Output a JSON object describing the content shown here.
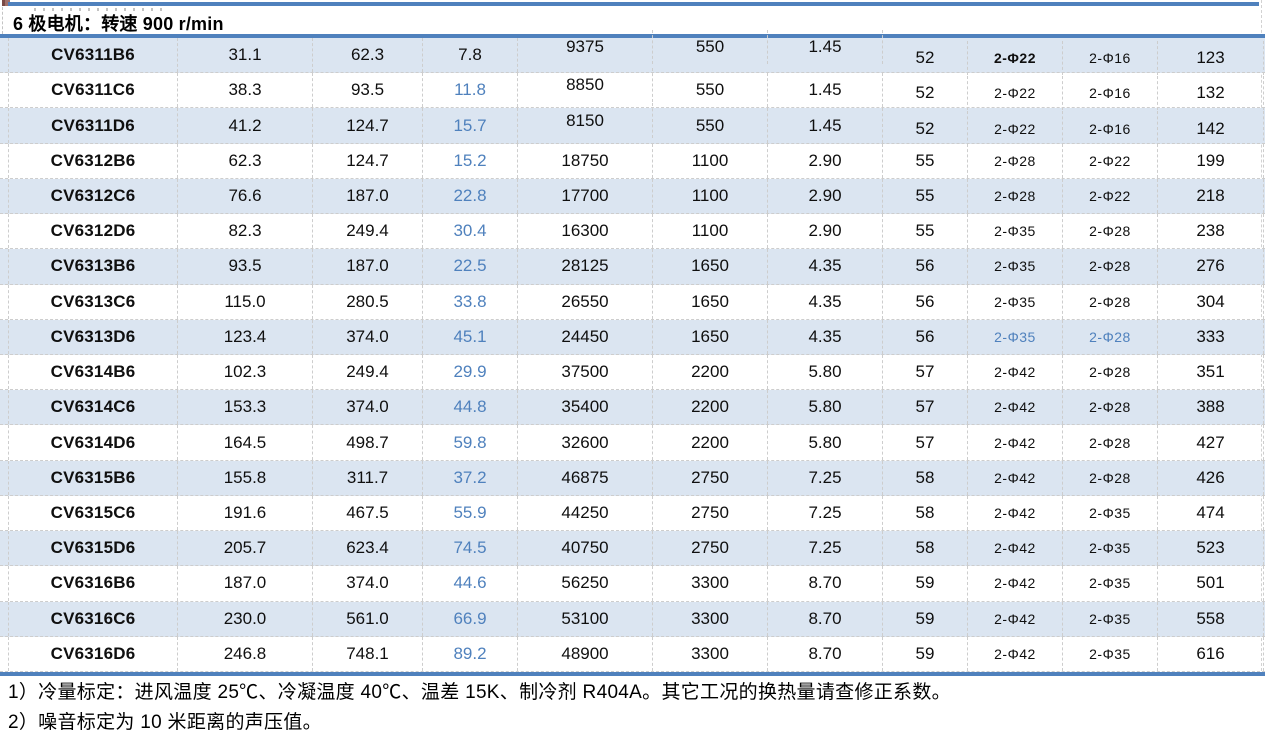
{
  "title": "6 极电机：转速 900 r/min",
  "table": {
    "rows": [
      {
        "model": "CV6311B6",
        "values": [
          "31.1",
          "62.3",
          "7.8",
          "9375",
          "550",
          "1.45",
          "52",
          "2-Φ22",
          "2-Φ16",
          "123"
        ],
        "col4_blue": false,
        "phi_bold": true,
        "phi_blue": false
      },
      {
        "model": "CV6311C6",
        "values": [
          "38.3",
          "93.5",
          "11.8",
          "8850",
          "550",
          "1.45",
          "52",
          "2-Φ22",
          "2-Φ16",
          "132"
        ],
        "col4_blue": true,
        "phi_bold": false,
        "phi_blue": false
      },
      {
        "model": "CV6311D6",
        "values": [
          "41.2",
          "124.7",
          "15.7",
          "8150",
          "550",
          "1.45",
          "52",
          "2-Φ22",
          "2-Φ16",
          "142"
        ],
        "col4_blue": true,
        "phi_bold": false,
        "phi_blue": false
      },
      {
        "model": "CV6312B6",
        "values": [
          "62.3",
          "124.7",
          "15.2",
          "18750",
          "1100",
          "2.90",
          "55",
          "2-Φ28",
          "2-Φ22",
          "199"
        ],
        "col4_blue": true,
        "phi_bold": false,
        "phi_blue": false
      },
      {
        "model": "CV6312C6",
        "values": [
          "76.6",
          "187.0",
          "22.8",
          "17700",
          "1100",
          "2.90",
          "55",
          "2-Φ28",
          "2-Φ22",
          "218"
        ],
        "col4_blue": true,
        "phi_bold": false,
        "phi_blue": false
      },
      {
        "model": "CV6312D6",
        "values": [
          "82.3",
          "249.4",
          "30.4",
          "16300",
          "1100",
          "2.90",
          "55",
          "2-Φ35",
          "2-Φ28",
          "238"
        ],
        "col4_blue": true,
        "phi_bold": false,
        "phi_blue": false
      },
      {
        "model": "CV6313B6",
        "values": [
          "93.5",
          "187.0",
          "22.5",
          "28125",
          "1650",
          "4.35",
          "56",
          "2-Φ35",
          "2-Φ28",
          "276"
        ],
        "col4_blue": true,
        "phi_bold": false,
        "phi_blue": false
      },
      {
        "model": "CV6313C6",
        "values": [
          "115.0",
          "280.5",
          "33.8",
          "26550",
          "1650",
          "4.35",
          "56",
          "2-Φ35",
          "2-Φ28",
          "304"
        ],
        "col4_blue": true,
        "phi_bold": false,
        "phi_blue": false
      },
      {
        "model": "CV6313D6",
        "values": [
          "123.4",
          "374.0",
          "45.1",
          "24450",
          "1650",
          "4.35",
          "56",
          "2-Φ35",
          "2-Φ28",
          "333"
        ],
        "col4_blue": true,
        "phi_bold": false,
        "phi_blue": true
      },
      {
        "model": "CV6314B6",
        "values": [
          "102.3",
          "249.4",
          "29.9",
          "37500",
          "2200",
          "5.80",
          "57",
          "2-Φ42",
          "2-Φ28",
          "351"
        ],
        "col4_blue": true,
        "phi_bold": false,
        "phi_blue": false
      },
      {
        "model": "CV6314C6",
        "values": [
          "153.3",
          "374.0",
          "44.8",
          "35400",
          "2200",
          "5.80",
          "57",
          "2-Φ42",
          "2-Φ28",
          "388"
        ],
        "col4_blue": true,
        "phi_bold": false,
        "phi_blue": false
      },
      {
        "model": "CV6314D6",
        "values": [
          "164.5",
          "498.7",
          "59.8",
          "32600",
          "2200",
          "5.80",
          "57",
          "2-Φ42",
          "2-Φ28",
          "427"
        ],
        "col4_blue": true,
        "phi_bold": false,
        "phi_blue": false
      },
      {
        "model": "CV6315B6",
        "values": [
          "155.8",
          "311.7",
          "37.2",
          "46875",
          "2750",
          "7.25",
          "58",
          "2-Φ42",
          "2-Φ28",
          "426"
        ],
        "col4_blue": true,
        "phi_bold": false,
        "phi_blue": false
      },
      {
        "model": "CV6315C6",
        "values": [
          "191.6",
          "467.5",
          "55.9",
          "44250",
          "2750",
          "7.25",
          "58",
          "2-Φ42",
          "2-Φ35",
          "474"
        ],
        "col4_blue": true,
        "phi_bold": false,
        "phi_blue": false
      },
      {
        "model": "CV6315D6",
        "values": [
          "205.7",
          "623.4",
          "74.5",
          "40750",
          "2750",
          "7.25",
          "58",
          "2-Φ42",
          "2-Φ35",
          "523"
        ],
        "col4_blue": true,
        "phi_bold": false,
        "phi_blue": false
      },
      {
        "model": "CV6316B6",
        "values": [
          "187.0",
          "374.0",
          "44.6",
          "56250",
          "3300",
          "8.70",
          "59",
          "2-Φ42",
          "2-Φ35",
          "501"
        ],
        "col4_blue": true,
        "phi_bold": false,
        "phi_blue": false
      },
      {
        "model": "CV6316C6",
        "values": [
          "230.0",
          "561.0",
          "66.9",
          "53100",
          "3300",
          "8.70",
          "59",
          "2-Φ42",
          "2-Φ35",
          "558"
        ],
        "col4_blue": true,
        "phi_bold": false,
        "phi_blue": false
      },
      {
        "model": "CV6316D6",
        "values": [
          "246.8",
          "748.1",
          "89.2",
          "48900",
          "3300",
          "8.70",
          "59",
          "2-Φ42",
          "2-Φ35",
          "616"
        ],
        "col4_blue": true,
        "phi_bold": false,
        "phi_blue": false
      }
    ]
  },
  "notes": [
    "1）冷量标定：进风温度 25℃、冷凝温度 40℃、温差 15K、制冷剂 R404A。其它工况的换热量请查修正系数。",
    "2）噪音标定为 10 米距离的声压值。"
  ],
  "colors": {
    "accent_blue": "#4f81bd",
    "band_fill": "#dbe5f1",
    "blue_value_text": "#4f81bd",
    "grid_dash": "#cdcdcd",
    "text": "#000000",
    "corner_mark": "#a0706a"
  }
}
